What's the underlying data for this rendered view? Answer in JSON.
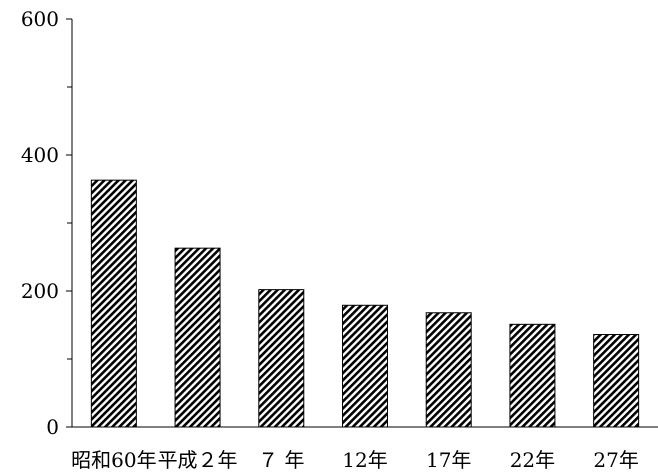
{
  "chart_data": {
    "type": "bar",
    "title": "",
    "xlabel": "",
    "ylabel": "",
    "categories": [
      "昭和60年",
      "平成２年",
      "７年",
      "12年",
      "17年",
      "22年",
      "27年"
    ],
    "category_labels": [
      "昭和60年",
      "平成２年",
      "７ 年",
      "12年",
      "17年",
      "22年",
      "27年"
    ],
    "values": [
      363,
      263,
      202,
      179,
      168,
      151,
      136
    ],
    "ylim": [
      0,
      600
    ],
    "yticks": [
      0,
      200,
      400,
      600
    ],
    "ytick_labels": [
      "0",
      "200",
      "400",
      "600"
    ],
    "minor_ticks": [
      100,
      300,
      500
    ],
    "grid": false,
    "bar_fill": "diagonal-hatch",
    "colors": {
      "bar_stroke": "#000000",
      "hatch_line": "#000000",
      "background": "#ffffff",
      "axis": "#000000"
    }
  }
}
